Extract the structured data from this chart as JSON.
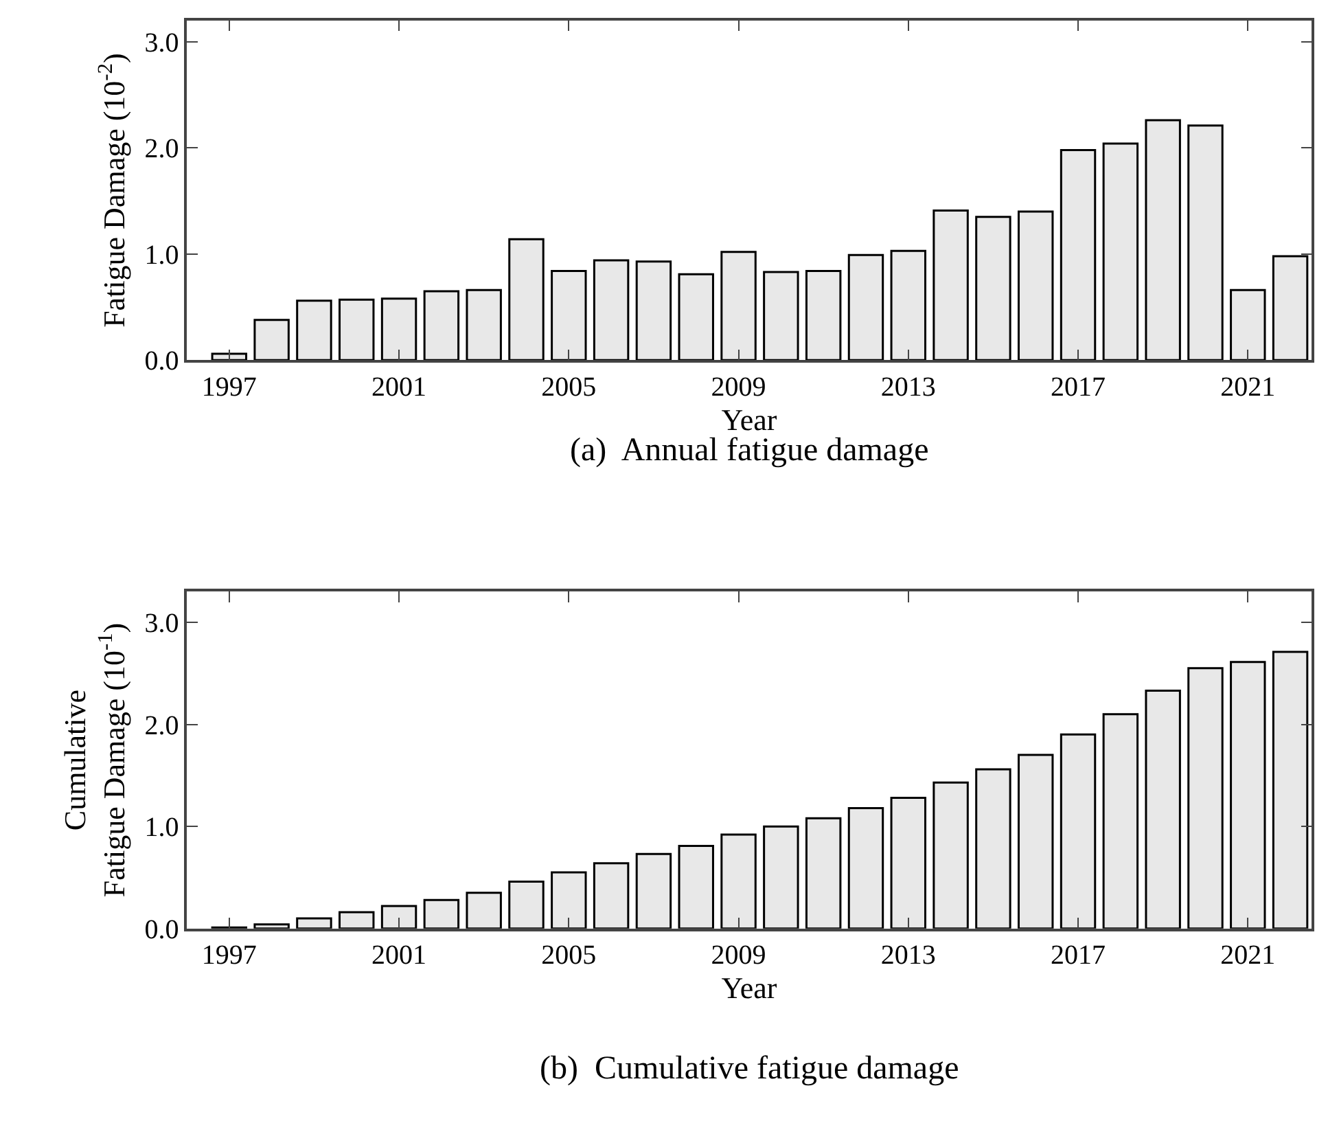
{
  "chart_data": [
    {
      "type": "bar",
      "title": "(a)  Annual fatigue damage",
      "xlabel": "Year",
      "ylabel": "Fatigue Damage (10$^{-2}$)",
      "x": [
        1997,
        1998,
        1999,
        2000,
        2001,
        2002,
        2003,
        2004,
        2005,
        2006,
        2007,
        2008,
        2009,
        2010,
        2011,
        2012,
        2013,
        2014,
        2015,
        2016,
        2017,
        2018,
        2019,
        2020,
        2021,
        2022
      ],
      "values": [
        0.06,
        0.38,
        0.56,
        0.57,
        0.58,
        0.65,
        0.66,
        1.14,
        0.84,
        0.94,
        0.93,
        0.81,
        1.02,
        0.83,
        0.84,
        0.99,
        1.03,
        1.41,
        1.35,
        1.4,
        1.98,
        2.04,
        2.26,
        2.21,
        0.66,
        0.98
      ],
      "color": "#e8e8e8",
      "xlim": [
        1996,
        2022.5
      ],
      "xticks": [
        1997,
        2001,
        2005,
        2009,
        2013,
        2017,
        2021
      ],
      "ylim": [
        0,
        3.2
      ],
      "yticks": [
        {
          "value": 0,
          "label": "0.0"
        },
        {
          "value": 1,
          "label": "1.0"
        },
        {
          "value": 2,
          "label": "2.0"
        },
        {
          "value": 3,
          "label": "3.0"
        }
      ]
    },
    {
      "type": "bar",
      "title": "(b)  Cumulative fatigue damage",
      "xlabel": "Year",
      "ylabel": "Cumulative\nFatigue Damage (10$^{-1}$)",
      "x": [
        1997,
        1998,
        1999,
        2000,
        2001,
        2002,
        2003,
        2004,
        2005,
        2006,
        2007,
        2008,
        2009,
        2010,
        2011,
        2012,
        2013,
        2014,
        2015,
        2016,
        2017,
        2018,
        2019,
        2020,
        2021,
        2022
      ],
      "values": [
        0.01,
        0.04,
        0.1,
        0.16,
        0.22,
        0.28,
        0.35,
        0.46,
        0.55,
        0.64,
        0.73,
        0.81,
        0.92,
        1.0,
        1.08,
        1.18,
        1.28,
        1.43,
        1.56,
        1.7,
        1.9,
        2.1,
        2.33,
        2.55,
        2.61,
        2.71
      ],
      "color": "#e8e8e8",
      "xlim": [
        1996,
        2022.5
      ],
      "xticks": [
        1997,
        2001,
        2005,
        2009,
        2013,
        2017,
        2021
      ],
      "ylim": [
        0,
        3.3
      ],
      "yticks": [
        {
          "value": 0,
          "label": "0.0"
        },
        {
          "value": 1,
          "label": "1.0"
        },
        {
          "value": 2,
          "label": "2.0"
        },
        {
          "value": 3,
          "label": "3.0"
        }
      ]
    }
  ]
}
